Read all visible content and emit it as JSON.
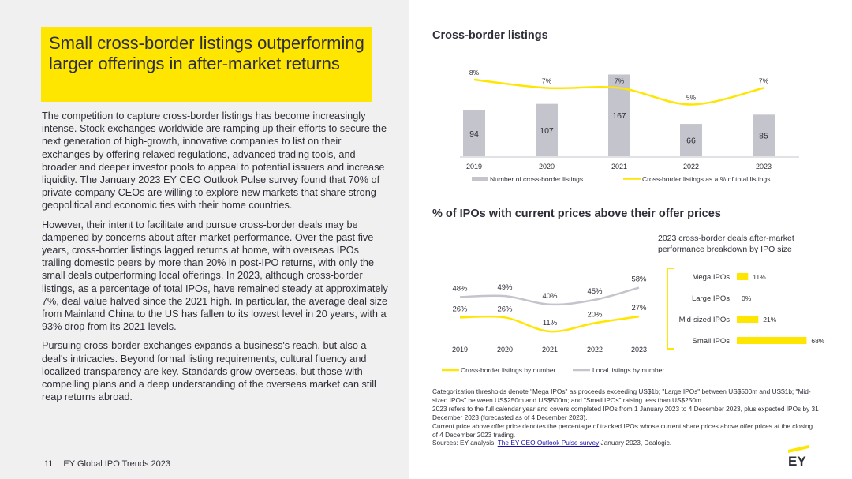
{
  "headline": "Small cross-border listings outperforming larger offerings in after-market returns",
  "paragraphs": [
    "The competition to capture cross-border listings has become increasingly intense. Stock exchanges worldwide are ramping up their efforts to secure the next generation of high-growth, innovative companies to list on their exchanges by offering relaxed regulations, advanced trading tools, and broader and deeper investor pools to appeal to potential issuers and increase liquidity. The January 2023 EY CEO Outlook Pulse survey found that 70% of private company CEOs are willing to explore new markets that share strong geopolitical and economic ties with their home countries.",
    "However, their intent to facilitate and pursue cross-border deals may be dampened by concerns about after-market performance. Over the past five years, cross-border listings lagged returns at home, with overseas IPOs trailing domestic peers by more than 20% in post-IPO returns, with only the small deals outperforming local offerings. In 2023, although cross-border listings, as a percentage of total IPOs, have remained steady at approximately 7%, deal value halved since the 2021 high. In particular, the average deal size from Mainland China to the US has fallen to its lowest level in 20 years, with a 93% drop from its 2021 levels.",
    "Pursuing cross-border exchanges expands a business's reach, but also a deal's intricacies. Beyond formal listing requirements, cultural fluency and localized transparency are key. Standards grow overseas, but those with compelling plans and a deep understanding of the overseas market can still reap returns abroad."
  ],
  "footer": {
    "page": "11",
    "publication": "EY Global IPO Trends 2023"
  },
  "chart1_title": "Cross-border listings",
  "chart2_title": "% of IPOs with current prices above their offer prices",
  "bar_title": "2023 cross-border deals after-market performance breakdown by IPO size",
  "notes": {
    "line1": "Categorization thresholds denote \"Mega IPOs\" as proceeds exceeding US$1b; \"Large IPOs\" between US$500m and US$1b; \"Mid-sized IPOs\" between US$250m and US$500m; and \"Small IPOs\" raising less than US$250m.",
    "line2": "2023 refers to the full calendar year and covers completed IPOs from 1 January 2023 to 4 December 2023, plus expected IPOs by 31 December 2023 (forecasted as of 4 December 2023).",
    "line3": "Current price above offer price denotes the percentage of tracked IPOs whose current share prices above offer prices at the closing of 4 December 2023 trading.",
    "sources_prefix": "Sources: EY analysis, ",
    "sources_link": "The EY CEO Outlook Pulse survey",
    "sources_suffix": " January 2023, Dealogic."
  },
  "logo_text": "EY",
  "colors": {
    "yellow": "#ffe600",
    "gray_bar": "#c4c4cd",
    "gray_line": "#c4c4cd",
    "text": "#2e2e38",
    "panel": "#f0f0f0"
  },
  "chart_data": [
    {
      "type": "bar",
      "categories": [
        "2019",
        "2020",
        "2021",
        "2022",
        "2023"
      ],
      "series": [
        {
          "name": "Number of cross-border listings",
          "type": "bar",
          "values": [
            94,
            107,
            167,
            66,
            85
          ],
          "labels": [
            "94",
            "107",
            "167",
            "66",
            "85"
          ]
        },
        {
          "name": "Cross-border listings as a % of total listings",
          "type": "line",
          "values": [
            8,
            7,
            7,
            5,
            7
          ],
          "labels": [
            "8%",
            "7%",
            "7%",
            "5%",
            "7%"
          ]
        }
      ],
      "legend": "bottom"
    },
    {
      "type": "line",
      "categories": [
        "2019",
        "2020",
        "2021",
        "2022",
        "2023"
      ],
      "series": [
        {
          "name": "Cross-border listings by number",
          "values": [
            26,
            26,
            11,
            20,
            27
          ],
          "labels": [
            "26%",
            "26%",
            "11%",
            "20%",
            "27%"
          ]
        },
        {
          "name": "Local listings by number",
          "values": [
            48,
            49,
            40,
            45,
            58
          ],
          "labels": [
            "48%",
            "49%",
            "40%",
            "45%",
            "58%"
          ]
        }
      ],
      "legend": "bottom"
    },
    {
      "type": "bar",
      "orientation": "horizontal",
      "categories": [
        "Mega IPOs",
        "Large IPOs",
        "Mid-sized IPOs",
        "Small IPOs"
      ],
      "values": [
        11,
        0,
        21,
        68
      ],
      "labels": [
        "11%",
        "0%",
        "21%",
        "68%"
      ]
    }
  ]
}
